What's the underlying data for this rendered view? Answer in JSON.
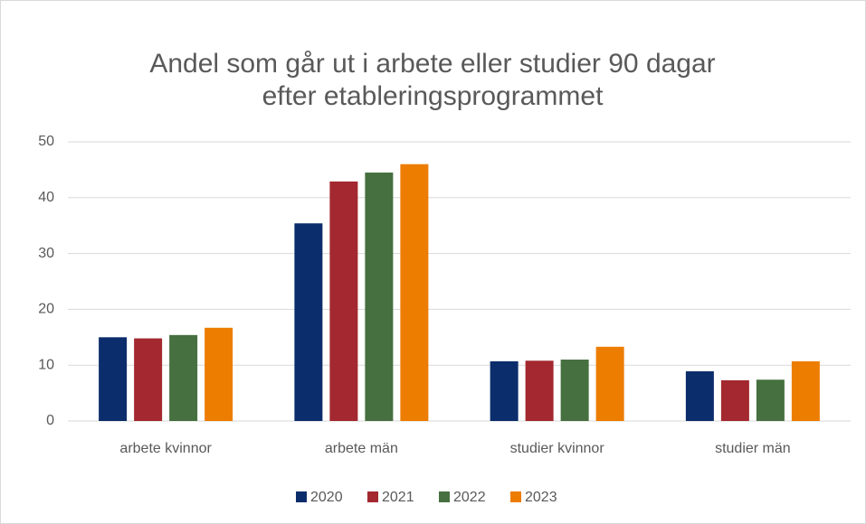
{
  "chart_data": {
    "type": "bar",
    "title": [
      "Andel som går ut i arbete eller studier 90 dagar",
      "efter etableringsprogrammet"
    ],
    "categories": [
      "arbete kvinnor",
      "arbete män",
      "studier kvinnor",
      "studier män"
    ],
    "series": [
      {
        "name": "2020",
        "color": "#0b2d6b",
        "values": [
          15.0,
          35.4,
          10.7,
          8.9
        ]
      },
      {
        "name": "2021",
        "color": "#a3282f",
        "values": [
          14.8,
          42.9,
          10.8,
          7.3
        ]
      },
      {
        "name": "2022",
        "color": "#46703f",
        "values": [
          15.4,
          44.5,
          11.0,
          7.4
        ]
      },
      {
        "name": "2023",
        "color": "#ed7d00",
        "values": [
          16.7,
          46.0,
          13.3,
          10.7
        ]
      }
    ],
    "ylim": [
      0,
      50
    ],
    "yticks": [
      0,
      10,
      20,
      30,
      40,
      50
    ],
    "grid": true,
    "legend": "bottom"
  }
}
